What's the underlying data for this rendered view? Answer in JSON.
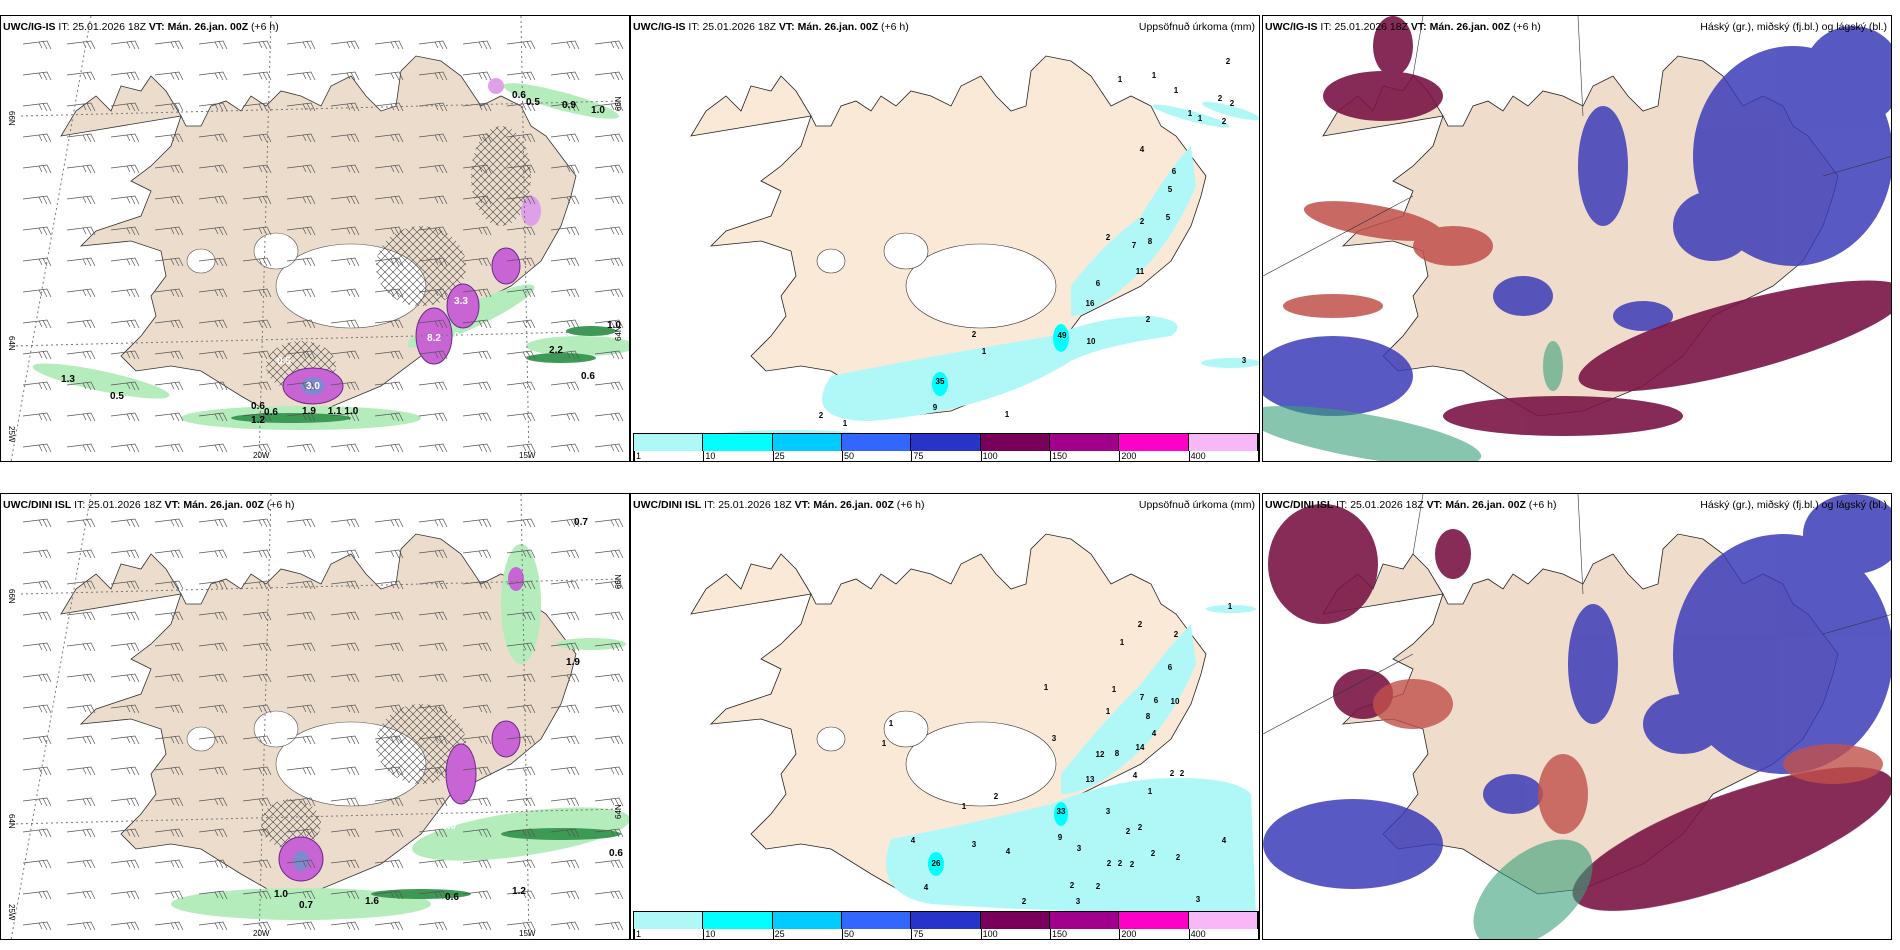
{
  "header": {
    "it_label": "IT:",
    "it": "25.01.2026 18Z",
    "vt_label": "VT:",
    "vt": "Mán. 26.jan. 00Z",
    "lead": "(+6 h)"
  },
  "models": {
    "top": "UWC/IG-IS",
    "bottom": "UWC/DINI ISL"
  },
  "titles": {
    "precip": "Uppsöfnuð úrkoma (mm)",
    "cloud": "Háský (gr.), miðský (fj.bl.) og lágský (bl.)"
  },
  "graticule": {
    "lat_66": "66N",
    "lat_64": "64N",
    "lon_25": "25W",
    "lon_20": "20W",
    "lon_15": "15W"
  },
  "colorbar": {
    "levels": [
      "1",
      "10",
      "25",
      "50",
      "75",
      "100",
      "150",
      "200",
      "400"
    ],
    "colors": [
      "#b0f8f8",
      "#00ffff",
      "#00ccff",
      "#3366ff",
      "#2833c8",
      "#78005a",
      "#a0008c",
      "#ff00c8",
      "#f8b8f8"
    ]
  },
  "colors": {
    "land": "#f3e4d3",
    "precip_light": "#b0f8f8",
    "green_light": "#b4ecbc",
    "green_dark": "#3c9a55",
    "purple": "#c964d4",
    "high_cloud": "#3aa07a",
    "mid_cloud": "#7a1545",
    "low_cloud": "#3c3cb8"
  },
  "labels": {
    "top_left": [
      "0.6",
      "0.5",
      "0.9",
      "1.0",
      "1.0",
      "0.6",
      "1.3",
      "0.5",
      "1.9",
      "1.1 1.0",
      "0.6",
      "0.6",
      "1.2",
      "3.0",
      "0.5",
      "8.2",
      "3.3",
      "0.4",
      "2.2"
    ],
    "bottom_left": [
      "0.7",
      "1.9",
      "0.6",
      "1.0",
      "0.7",
      "1.6",
      "0.6",
      "1.2",
      "5.0"
    ],
    "top_middle": [
      "2",
      "1",
      "1",
      "1",
      "2",
      "2",
      "1",
      "1",
      "2",
      "4",
      "6",
      "5",
      "5",
      "2",
      "2",
      "7",
      "8",
      "11",
      "6",
      "16",
      "2",
      "49",
      "10",
      "2",
      "1",
      "35",
      "9",
      "1",
      "3",
      "2",
      "1"
    ],
    "bottom_middle": [
      "1",
      "2",
      "2",
      "1",
      "6",
      "1",
      "1",
      "7",
      "6",
      "10",
      "1",
      "8",
      "1",
      "1",
      "4",
      "3",
      "12",
      "8",
      "14",
      "4",
      "2",
      "2",
      "13",
      "2",
      "1",
      "1",
      "33",
      "3",
      "2",
      "2",
      "4",
      "3",
      "9",
      "4",
      "3",
      "4",
      "2",
      "2",
      "26",
      "2",
      "2",
      "2",
      "4",
      "2",
      "2",
      "2",
      "3",
      "3"
    ]
  }
}
